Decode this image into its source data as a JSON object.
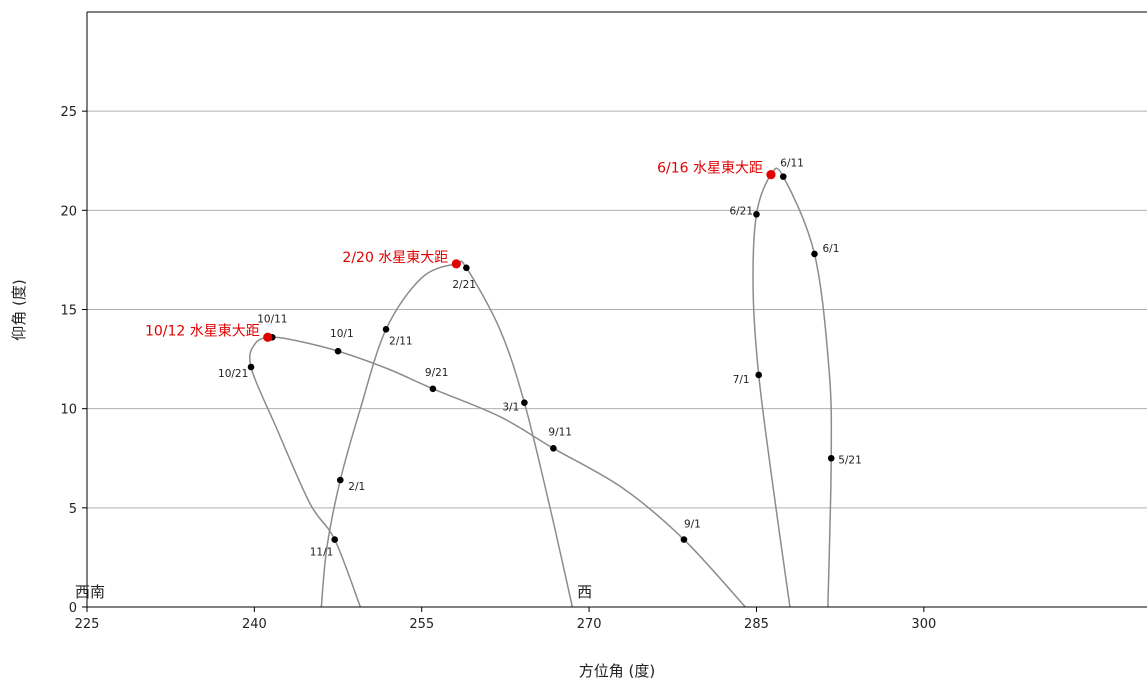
{
  "chart_data": {
    "type": "scatter",
    "title": "",
    "xlabel": "方位角 (度)",
    "ylabel": "仰角 (度)",
    "xlim": [
      225,
      320
    ],
    "ylim": [
      0,
      30
    ],
    "xticks": [
      225,
      240,
      255,
      270,
      285,
      300
    ],
    "yticks": [
      0,
      5,
      10,
      15,
      20,
      25
    ],
    "grid": "horizontal",
    "colors": {
      "curve": "#8c8c8c",
      "point": "#000000",
      "highlight": "#e00000",
      "grid": "#b0b0b0"
    },
    "direction_labels": [
      {
        "text": "西南",
        "x": 225
      },
      {
        "text": "西",
        "x": 270
      }
    ],
    "series": [
      {
        "points": [
          {
            "x": 246.0,
            "y": 0.0
          },
          {
            "x": 246.5,
            "y": 3.0
          },
          {
            "x": 247.7,
            "y": 6.4,
            "label": "2/1"
          },
          {
            "x": 249.5,
            "y": 10.0
          },
          {
            "x": 251.8,
            "y": 14.0,
            "label": "2/11"
          },
          {
            "x": 255.0,
            "y": 16.6
          },
          {
            "x": 258.1,
            "y": 17.3
          },
          {
            "x": 259.0,
            "y": 17.1,
            "label": "2/21"
          },
          {
            "x": 262.0,
            "y": 14.0
          },
          {
            "x": 264.2,
            "y": 10.3,
            "label": "3/1"
          },
          {
            "x": 266.5,
            "y": 5.0
          },
          {
            "x": 268.5,
            "y": 0.0
          }
        ],
        "highlight": {
          "x": 258.1,
          "y": 17.3,
          "label": "2/20 水星東大距"
        }
      },
      {
        "points": [
          {
            "x": 288.0,
            "y": 0.0
          },
          {
            "x": 286.5,
            "y": 6.0
          },
          {
            "x": 285.2,
            "y": 11.7,
            "label": "7/1"
          },
          {
            "x": 284.7,
            "y": 16.0
          },
          {
            "x": 285.0,
            "y": 19.8,
            "label": "6/21"
          },
          {
            "x": 286.3,
            "y": 21.8
          },
          {
            "x": 287.4,
            "y": 21.7,
            "label": "6/11"
          },
          {
            "x": 290.2,
            "y": 17.8,
            "label": "6/1"
          },
          {
            "x": 291.5,
            "y": 12.0
          },
          {
            "x": 291.7,
            "y": 7.5,
            "label": "5/21"
          },
          {
            "x": 291.4,
            "y": 0.0
          }
        ],
        "highlight": {
          "x": 286.3,
          "y": 21.8,
          "label": "6/16 水星東大距"
        }
      },
      {
        "points": [
          {
            "x": 284.0,
            "y": 0.0
          },
          {
            "x": 278.5,
            "y": 3.4,
            "label": "9/1"
          },
          {
            "x": 273.0,
            "y": 6.0
          },
          {
            "x": 266.8,
            "y": 8.0,
            "label": "9/11"
          },
          {
            "x": 262.0,
            "y": 9.6
          },
          {
            "x": 256.0,
            "y": 11.0,
            "label": "9/21"
          },
          {
            "x": 252.0,
            "y": 12.0
          },
          {
            "x": 247.5,
            "y": 12.9,
            "label": "10/1"
          },
          {
            "x": 244.0,
            "y": 13.4
          },
          {
            "x": 241.6,
            "y": 13.6,
            "label": "10/11"
          },
          {
            "x": 240.1,
            "y": 13.3
          },
          {
            "x": 239.7,
            "y": 12.1,
            "label": "10/21"
          },
          {
            "x": 242.0,
            "y": 9.0
          },
          {
            "x": 245.0,
            "y": 5.2
          },
          {
            "x": 247.2,
            "y": 3.4,
            "label": "11/1"
          },
          {
            "x": 249.5,
            "y": 0.0
          }
        ],
        "highlight": {
          "x": 241.2,
          "y": 13.6,
          "label": "10/12 水星東大距"
        }
      }
    ]
  }
}
